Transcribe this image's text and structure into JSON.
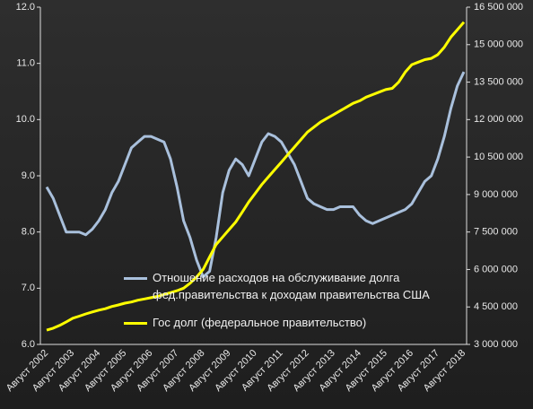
{
  "chart_data": {
    "type": "line",
    "categories": [
      "Август 2002",
      null,
      null,
      null,
      "Август 2003",
      null,
      null,
      null,
      "Август 2004",
      null,
      null,
      null,
      "Август 2005",
      null,
      null,
      null,
      "Август 2006",
      null,
      null,
      null,
      "Август 2007",
      null,
      null,
      null,
      "Август 2008",
      null,
      null,
      null,
      "Август 2009",
      null,
      null,
      null,
      "Август 2010",
      null,
      null,
      null,
      "Август 2011",
      null,
      null,
      null,
      "Август 2012",
      null,
      null,
      null,
      "Август 2013",
      null,
      null,
      null,
      "Август 2014",
      null,
      null,
      null,
      "Август 2015",
      null,
      null,
      null,
      "Август 2016",
      null,
      null,
      null,
      "Август 2017",
      null,
      null,
      null,
      "Август 2018"
    ],
    "series": [
      {
        "name": "Отношение расходов на обслуживание долга фед.правительства к доходам правительства США",
        "color": "#a9c0dc",
        "values": [
          8.8,
          8.6,
          8.3,
          8.0,
          8.0,
          8.0,
          7.95,
          8.05,
          8.2,
          8.4,
          8.7,
          8.9,
          9.2,
          9.5,
          9.6,
          9.7,
          9.7,
          9.65,
          9.6,
          9.3,
          8.8,
          8.2,
          7.9,
          7.5,
          7.2,
          7.3,
          7.9,
          8.7,
          9.1,
          9.3,
          9.2,
          9.0,
          9.3,
          9.6,
          9.75,
          9.7,
          9.6,
          9.4,
          9.2,
          8.9,
          8.6,
          8.5,
          8.45,
          8.4,
          8.4,
          8.45,
          8.45,
          8.45,
          8.3,
          8.2,
          8.15,
          8.2,
          8.25,
          8.3,
          8.35,
          8.4,
          8.5,
          8.7,
          8.9,
          9.0,
          9.3,
          9.7,
          10.2,
          10.6,
          10.85
        ]
      },
      {
        "name": "Гос долг (федеральное правительство)",
        "color": "#ffff00",
        "axis": "y2",
        "values": [
          3570000,
          3650000,
          3760000,
          3900000,
          4050000,
          4130000,
          4220000,
          4300000,
          4370000,
          4430000,
          4520000,
          4580000,
          4650000,
          4700000,
          4770000,
          4820000,
          4870000,
          4920000,
          5000000,
          5070000,
          5150000,
          5250000,
          5450000,
          5700000,
          6000000,
          6500000,
          7000000,
          7300000,
          7600000,
          7900000,
          8300000,
          8700000,
          9050000,
          9400000,
          9700000,
          10000000,
          10300000,
          10600000,
          10900000,
          11200000,
          11500000,
          11700000,
          11900000,
          12050000,
          12200000,
          12350000,
          12500000,
          12650000,
          12750000,
          12900000,
          13000000,
          13100000,
          13200000,
          13250000,
          13500000,
          13900000,
          14200000,
          14300000,
          14400000,
          14450000,
          14600000,
          14900000,
          15300000,
          15600000,
          15900000
        ]
      }
    ],
    "ylim": [
      6,
      12
    ],
    "yticks": [
      {
        "value": 6,
        "label": "6.0"
      },
      {
        "value": 7,
        "label": "7.0"
      },
      {
        "value": 8,
        "label": "8.0"
      },
      {
        "value": 9,
        "label": "9.0"
      },
      {
        "value": 10,
        "label": "10.0"
      },
      {
        "value": 11,
        "label": "11.0"
      },
      {
        "value": 12,
        "label": "12.0"
      }
    ],
    "y2lim": [
      3000000,
      16500000
    ],
    "y2ticks": [
      {
        "value": 3000000,
        "label": "3 000 000"
      },
      {
        "value": 4500000,
        "label": "4 500 000"
      },
      {
        "value": 6000000,
        "label": "6 000 000"
      },
      {
        "value": 7500000,
        "label": "7 500 000"
      },
      {
        "value": 9000000,
        "label": "9 000 000"
      },
      {
        "value": 10500000,
        "label": "10 500 000"
      },
      {
        "value": 12000000,
        "label": "12 000 000"
      },
      {
        "value": 13500000,
        "label": "13 500 000"
      },
      {
        "value": 15000000,
        "label": "15 000 000"
      },
      {
        "value": 16500000,
        "label": "16 500 000"
      }
    ],
    "grid": false
  }
}
